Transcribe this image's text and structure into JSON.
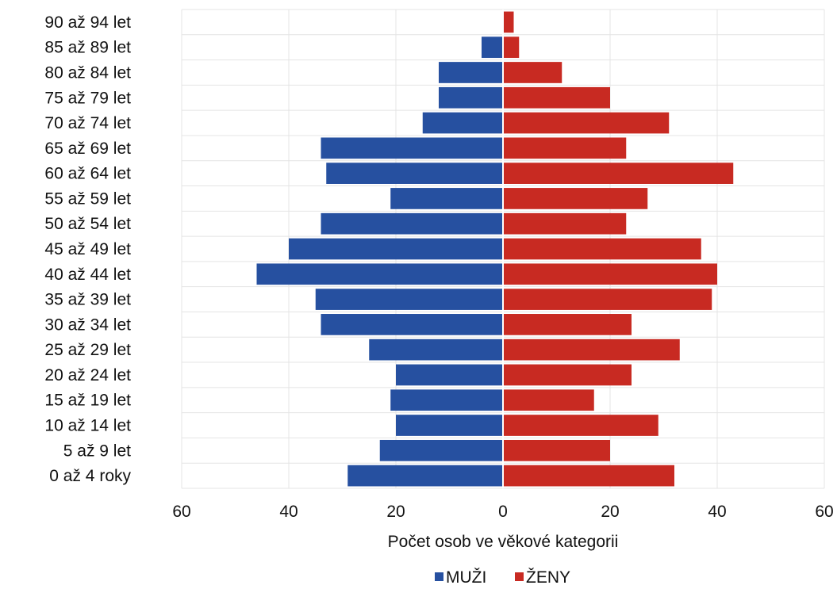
{
  "chart_data": {
    "type": "bar",
    "orientation": "horizontal",
    "subtype": "population-pyramid",
    "title": "",
    "xlabel": "Počet osob ve věkové kategorii",
    "ylabel": "",
    "xlim": [
      -60,
      60
    ],
    "x_ticks": [
      -60,
      -40,
      -20,
      0,
      20,
      40,
      60
    ],
    "x_tick_labels": [
      "60",
      "40",
      "20",
      "0",
      "20",
      "40",
      "60"
    ],
    "grid": true,
    "legend_position": "bottom",
    "categories": [
      "90 až 94 let",
      "85 až 89 let",
      "80 až 84 let",
      "75 až 79 let",
      "70 až 74 let",
      "65 až 69 let",
      "60 až 64 let",
      "55 až 59 let",
      "50 až 54 let",
      "45 až 49 let",
      "40 až 44 let",
      "35 až 39 let",
      "30 až 34 let",
      "25 až 29 let",
      "20 až 24 let",
      "15 až 19 let",
      "10 až 14 let",
      "5 až 9 let",
      "0 až 4 roky"
    ],
    "series": [
      {
        "name": "MUŽI",
        "color": "#2650a0",
        "side": "left",
        "values": [
          0,
          4,
          12,
          12,
          15,
          34,
          33,
          21,
          34,
          40,
          46,
          35,
          34,
          25,
          20,
          21,
          20,
          23,
          29
        ]
      },
      {
        "name": "ŽENY",
        "color": "#c82a22",
        "side": "right",
        "values": [
          2,
          3,
          11,
          20,
          31,
          23,
          43,
          27,
          23,
          37,
          40,
          39,
          24,
          33,
          24,
          17,
          29,
          20,
          32
        ]
      }
    ]
  }
}
